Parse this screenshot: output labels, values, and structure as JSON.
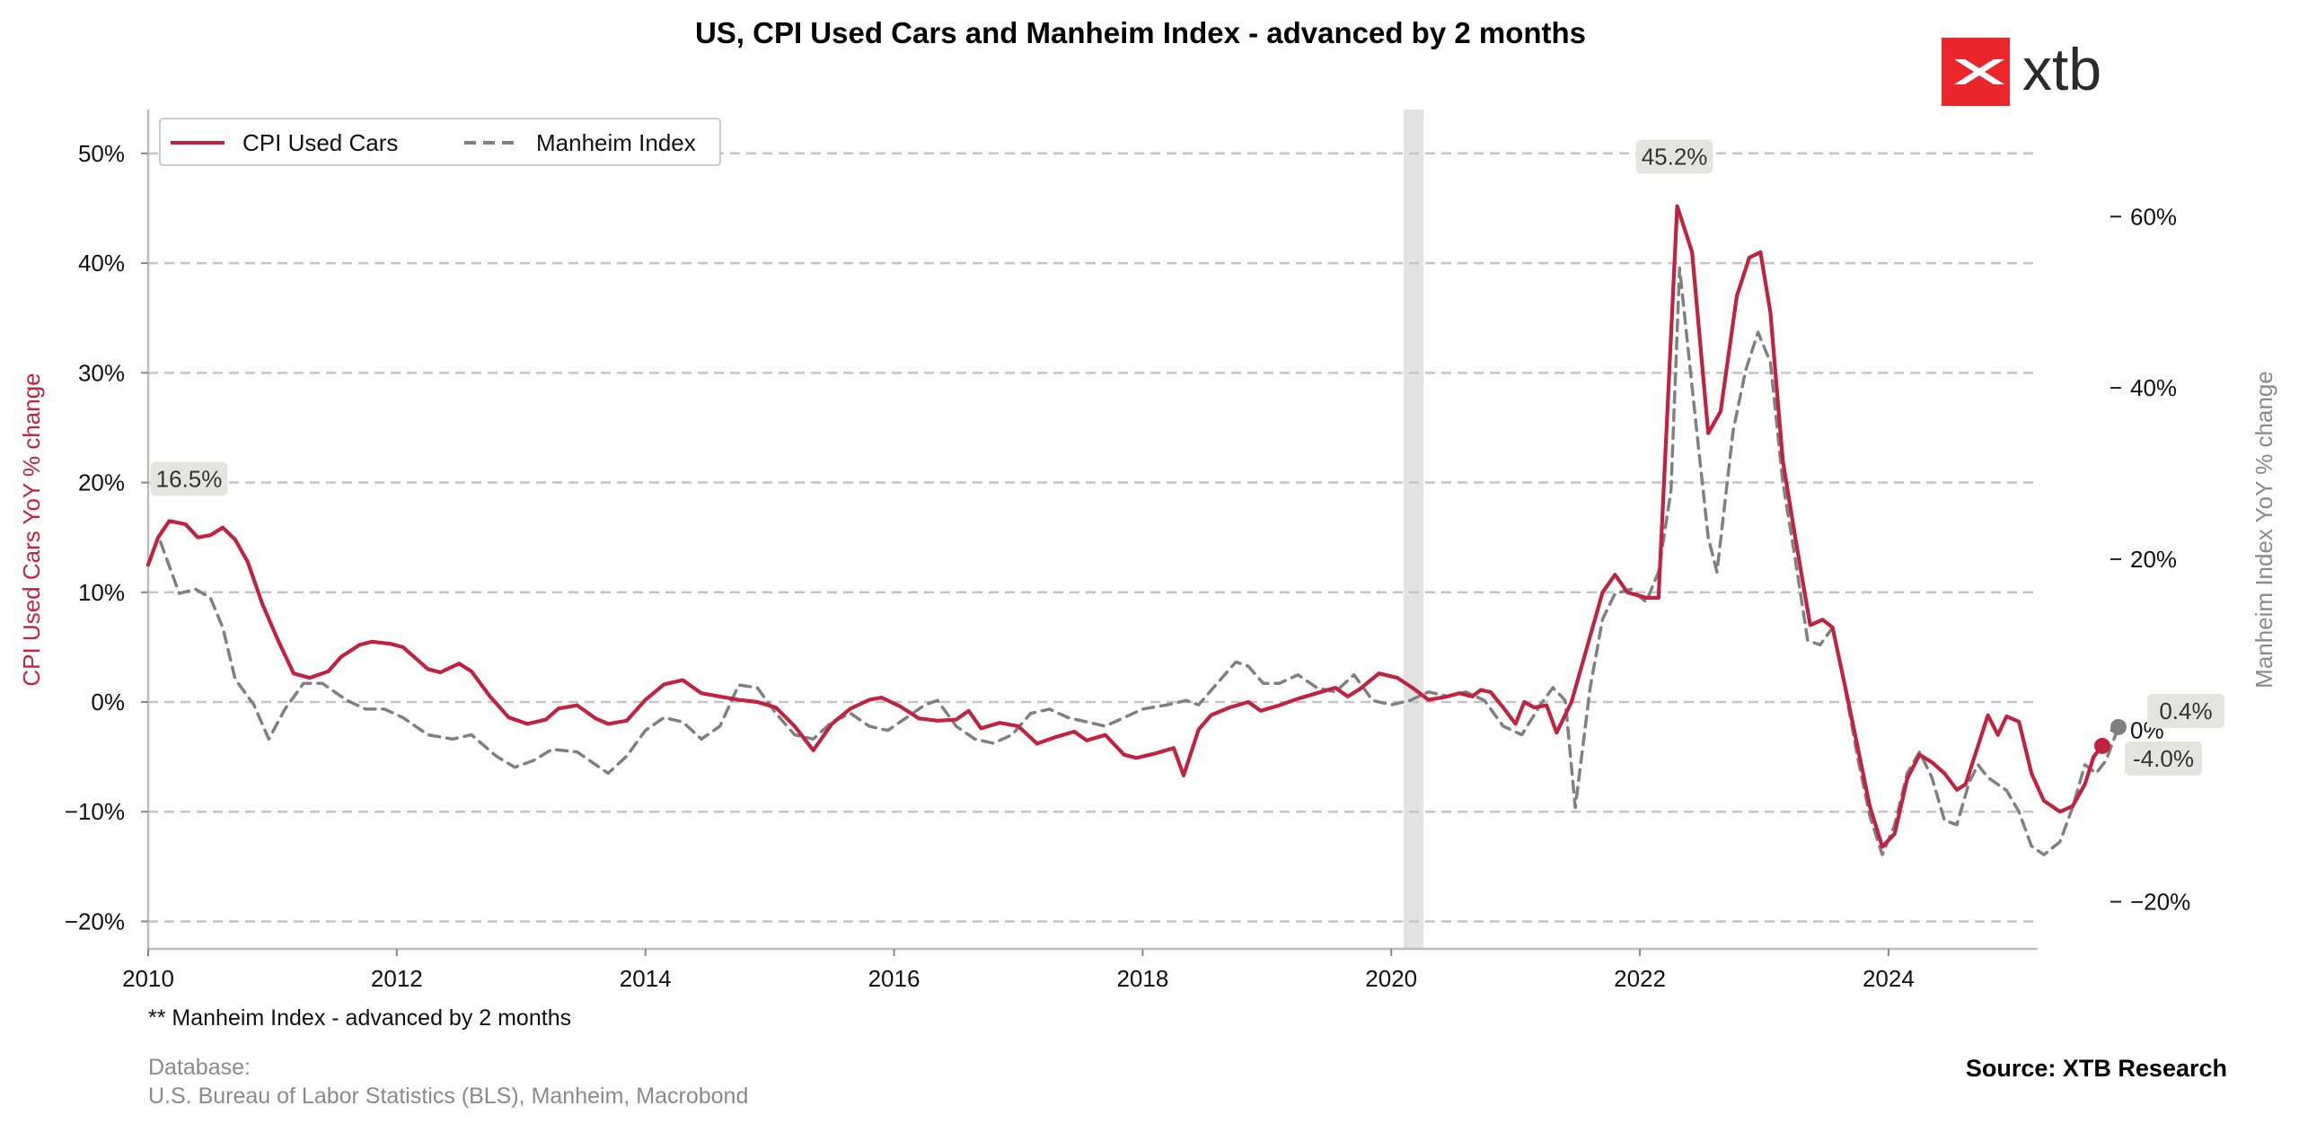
{
  "chart_data": {
    "type": "line",
    "title": "US, CPI Used Cars and Manheim Index - advanced by 2 months",
    "ylabel_left": "CPI Used Cars YoY % change",
    "ylabel_right": "Manheim Index YoY % change",
    "xlim": [
      2010,
      2025.2
    ],
    "ylim_left": [
      -22.5,
      54
    ],
    "ylim_right": [
      -25.5,
      72.5
    ],
    "grid": "horizontal-dashed",
    "legend_position": "top-left",
    "x_ticks": [
      2010,
      2012,
      2014,
      2016,
      2018,
      2020,
      2022,
      2024
    ],
    "x_tick_labels": [
      "2010",
      "2012",
      "2014",
      "2016",
      "2018",
      "2020",
      "2022",
      "2024"
    ],
    "y_left_ticks": [
      -20,
      -10,
      0,
      10,
      20,
      30,
      40,
      50
    ],
    "y_left_tick_labels": [
      "−20%",
      "−10%",
      "0%",
      "10%",
      "20%",
      "30%",
      "40%",
      "50%"
    ],
    "y_right_ticks": [
      -20,
      0,
      20,
      40,
      60
    ],
    "y_right_tick_labels": [
      "−20%",
      "0%",
      "20%",
      "40%",
      "60%"
    ],
    "shaded_band": [
      2020.1,
      2020.26
    ],
    "series": [
      {
        "name": "CPI Used Cars",
        "axis": "left",
        "color": "#c0223f",
        "style": "solid",
        "points": [
          [
            2010.0,
            12.5
          ],
          [
            2010.08,
            15.0
          ],
          [
            2010.17,
            16.5
          ],
          [
            2010.3,
            16.2
          ],
          [
            2010.4,
            15.0
          ],
          [
            2010.5,
            15.2
          ],
          [
            2010.6,
            15.9
          ],
          [
            2010.7,
            14.8
          ],
          [
            2010.8,
            12.8
          ],
          [
            2010.92,
            8.9
          ],
          [
            2011.05,
            5.5
          ],
          [
            2011.17,
            2.6
          ],
          [
            2011.3,
            2.2
          ],
          [
            2011.45,
            2.8
          ],
          [
            2011.55,
            4.1
          ],
          [
            2011.7,
            5.2
          ],
          [
            2011.8,
            5.5
          ],
          [
            2011.95,
            5.3
          ],
          [
            2012.05,
            5.0
          ],
          [
            2012.15,
            4.0
          ],
          [
            2012.25,
            3.0
          ],
          [
            2012.35,
            2.7
          ],
          [
            2012.5,
            3.5
          ],
          [
            2012.6,
            2.8
          ],
          [
            2012.75,
            0.5
          ],
          [
            2012.9,
            -1.4
          ],
          [
            2013.05,
            -2.0
          ],
          [
            2013.2,
            -1.6
          ],
          [
            2013.3,
            -0.6
          ],
          [
            2013.45,
            -0.3
          ],
          [
            2013.6,
            -1.5
          ],
          [
            2013.7,
            -2.0
          ],
          [
            2013.85,
            -1.7
          ],
          [
            2014.0,
            0.2
          ],
          [
            2014.15,
            1.6
          ],
          [
            2014.3,
            2.0
          ],
          [
            2014.45,
            0.8
          ],
          [
            2014.6,
            0.5
          ],
          [
            2014.75,
            0.2
          ],
          [
            2014.9,
            0.0
          ],
          [
            2015.05,
            -0.5
          ],
          [
            2015.2,
            -2.2
          ],
          [
            2015.35,
            -4.4
          ],
          [
            2015.5,
            -2.0
          ],
          [
            2015.65,
            -0.6
          ],
          [
            2015.8,
            0.2
          ],
          [
            2015.9,
            0.4
          ],
          [
            2016.05,
            -0.4
          ],
          [
            2016.2,
            -1.5
          ],
          [
            2016.35,
            -1.7
          ],
          [
            2016.5,
            -1.6
          ],
          [
            2016.6,
            -0.8
          ],
          [
            2016.7,
            -2.4
          ],
          [
            2016.85,
            -1.9
          ],
          [
            2017.0,
            -2.2
          ],
          [
            2017.15,
            -3.8
          ],
          [
            2017.3,
            -3.2
          ],
          [
            2017.45,
            -2.7
          ],
          [
            2017.55,
            -3.5
          ],
          [
            2017.7,
            -3.0
          ],
          [
            2017.85,
            -4.8
          ],
          [
            2017.95,
            -5.1
          ],
          [
            2018.1,
            -4.7
          ],
          [
            2018.25,
            -4.2
          ],
          [
            2018.33,
            -6.7
          ],
          [
            2018.45,
            -2.5
          ],
          [
            2018.55,
            -1.2
          ],
          [
            2018.7,
            -0.5
          ],
          [
            2018.85,
            0.0
          ],
          [
            2018.95,
            -0.8
          ],
          [
            2019.1,
            -0.3
          ],
          [
            2019.25,
            0.3
          ],
          [
            2019.4,
            0.8
          ],
          [
            2019.55,
            1.3
          ],
          [
            2019.65,
            0.5
          ],
          [
            2019.75,
            1.2
          ],
          [
            2019.9,
            2.6
          ],
          [
            2020.05,
            2.2
          ],
          [
            2020.17,
            1.3
          ],
          [
            2020.3,
            0.2
          ],
          [
            2020.45,
            0.5
          ],
          [
            2020.55,
            0.8
          ],
          [
            2020.65,
            0.5
          ],
          [
            2020.72,
            1.1
          ],
          [
            2020.8,
            0.9
          ],
          [
            2020.9,
            -0.5
          ],
          [
            2021.0,
            -2.0
          ],
          [
            2021.07,
            0.0
          ],
          [
            2021.15,
            -0.5
          ],
          [
            2021.25,
            -0.3
          ],
          [
            2021.33,
            -2.8
          ],
          [
            2021.45,
            0.0
          ],
          [
            2021.55,
            4.0
          ],
          [
            2021.7,
            10.0
          ],
          [
            2021.8,
            11.6
          ],
          [
            2021.9,
            10.0
          ],
          [
            2022.05,
            9.5
          ],
          [
            2022.15,
            9.5
          ],
          [
            2022.3,
            45.2
          ],
          [
            2022.42,
            41.0
          ],
          [
            2022.55,
            24.5
          ],
          [
            2022.65,
            26.5
          ],
          [
            2022.78,
            37.0
          ],
          [
            2022.88,
            40.5
          ],
          [
            2022.97,
            41.0
          ],
          [
            2023.05,
            35.5
          ],
          [
            2023.15,
            22.0
          ],
          [
            2023.25,
            15.0
          ],
          [
            2023.37,
            7.0
          ],
          [
            2023.47,
            7.5
          ],
          [
            2023.55,
            6.8
          ],
          [
            2023.65,
            1.5
          ],
          [
            2023.75,
            -4.0
          ],
          [
            2023.85,
            -9.5
          ],
          [
            2023.95,
            -13.2
          ],
          [
            2024.05,
            -12.0
          ],
          [
            2024.15,
            -7.0
          ],
          [
            2024.25,
            -4.8
          ],
          [
            2024.35,
            -5.5
          ],
          [
            2024.45,
            -6.5
          ],
          [
            2024.55,
            -8.0
          ],
          [
            2024.62,
            -7.5
          ],
          [
            2024.72,
            -4.0
          ],
          [
            2024.8,
            -1.2
          ],
          [
            2024.88,
            -3.0
          ],
          [
            2024.95,
            -1.3
          ],
          [
            2025.05,
            -1.8
          ],
          [
            2025.15,
            -6.5
          ],
          [
            2025.25,
            -9.0
          ],
          [
            2025.38,
            -10.0
          ],
          [
            2025.48,
            -9.5
          ],
          [
            2025.58,
            -7.5
          ],
          [
            2025.65,
            -5.0
          ],
          [
            2025.72,
            -4.0
          ]
        ]
      },
      {
        "name": "Manheim Index",
        "axis": "right",
        "color": "#808080",
        "style": "dashed",
        "points": [
          [
            2010.1,
            22.0
          ],
          [
            2010.25,
            16.0
          ],
          [
            2010.38,
            16.5
          ],
          [
            2010.5,
            15.5
          ],
          [
            2010.6,
            12.0
          ],
          [
            2010.7,
            6.0
          ],
          [
            2010.85,
            3.0
          ],
          [
            2010.97,
            -1.0
          ],
          [
            2011.1,
            2.5
          ],
          [
            2011.25,
            5.5
          ],
          [
            2011.4,
            5.5
          ],
          [
            2011.6,
            3.5
          ],
          [
            2011.75,
            2.5
          ],
          [
            2011.9,
            2.5
          ],
          [
            2012.05,
            1.5
          ],
          [
            2012.25,
            -0.5
          ],
          [
            2012.45,
            -1.0
          ],
          [
            2012.6,
            -0.5
          ],
          [
            2012.8,
            -3.0
          ],
          [
            2012.95,
            -4.3
          ],
          [
            2013.1,
            -3.5
          ],
          [
            2013.25,
            -2.2
          ],
          [
            2013.45,
            -2.5
          ],
          [
            2013.55,
            -3.5
          ],
          [
            2013.7,
            -5.0
          ],
          [
            2013.85,
            -3.0
          ],
          [
            2014.0,
            0.0
          ],
          [
            2014.15,
            1.5
          ],
          [
            2014.3,
            1.0
          ],
          [
            2014.45,
            -1.0
          ],
          [
            2014.6,
            0.5
          ],
          [
            2014.75,
            5.3
          ],
          [
            2014.9,
            5.0
          ],
          [
            2015.05,
            2.0
          ],
          [
            2015.2,
            -0.5
          ],
          [
            2015.35,
            -1.0
          ],
          [
            2015.5,
            1.0
          ],
          [
            2015.65,
            2.0
          ],
          [
            2015.8,
            0.5
          ],
          [
            2015.95,
            0.0
          ],
          [
            2016.1,
            1.5
          ],
          [
            2016.25,
            3.0
          ],
          [
            2016.35,
            3.5
          ],
          [
            2016.5,
            0.5
          ],
          [
            2016.65,
            -1.0
          ],
          [
            2016.8,
            -1.5
          ],
          [
            2016.95,
            -0.5
          ],
          [
            2017.1,
            2.0
          ],
          [
            2017.25,
            2.5
          ],
          [
            2017.4,
            1.5
          ],
          [
            2017.55,
            1.0
          ],
          [
            2017.7,
            0.5
          ],
          [
            2017.85,
            1.5
          ],
          [
            2018.0,
            2.5
          ],
          [
            2018.2,
            3.0
          ],
          [
            2018.35,
            3.5
          ],
          [
            2018.45,
            3.0
          ],
          [
            2018.6,
            5.5
          ],
          [
            2018.75,
            8.0
          ],
          [
            2018.85,
            7.5
          ],
          [
            2018.97,
            5.5
          ],
          [
            2019.1,
            5.5
          ],
          [
            2019.25,
            6.5
          ],
          [
            2019.4,
            5.0
          ],
          [
            2019.55,
            4.5
          ],
          [
            2019.7,
            6.5
          ],
          [
            2019.85,
            3.5
          ],
          [
            2020.0,
            3.0
          ],
          [
            2020.15,
            3.5
          ],
          [
            2020.3,
            4.5
          ],
          [
            2020.45,
            4.0
          ],
          [
            2020.6,
            4.5
          ],
          [
            2020.75,
            3.5
          ],
          [
            2020.9,
            0.5
          ],
          [
            2021.05,
            -0.5
          ],
          [
            2021.2,
            3.0
          ],
          [
            2021.3,
            5.0
          ],
          [
            2021.4,
            3.5
          ],
          [
            2021.48,
            -9.0
          ],
          [
            2021.6,
            5.0
          ],
          [
            2021.7,
            13.0
          ],
          [
            2021.8,
            16.0
          ],
          [
            2021.93,
            16.5
          ],
          [
            2022.05,
            15.0
          ],
          [
            2022.15,
            18.5
          ],
          [
            2022.25,
            28.0
          ],
          [
            2022.32,
            54.0
          ],
          [
            2022.45,
            36.0
          ],
          [
            2022.55,
            22.5
          ],
          [
            2022.62,
            18.5
          ],
          [
            2022.75,
            35.0
          ],
          [
            2022.85,
            42.0
          ],
          [
            2022.95,
            46.5
          ],
          [
            2023.05,
            43.0
          ],
          [
            2023.15,
            29.0
          ],
          [
            2023.25,
            20.0
          ],
          [
            2023.35,
            10.5
          ],
          [
            2023.45,
            10.0
          ],
          [
            2023.55,
            12.0
          ],
          [
            2023.65,
            5.0
          ],
          [
            2023.75,
            -3.0
          ],
          [
            2023.85,
            -10.0
          ],
          [
            2023.95,
            -14.5
          ],
          [
            2024.05,
            -11.0
          ],
          [
            2024.15,
            -5.0
          ],
          [
            2024.25,
            -2.5
          ],
          [
            2024.35,
            -5.5
          ],
          [
            2024.45,
            -10.5
          ],
          [
            2024.55,
            -11.0
          ],
          [
            2024.65,
            -6.0
          ],
          [
            2024.72,
            -4.0
          ],
          [
            2024.8,
            -5.5
          ],
          [
            2024.95,
            -7.0
          ],
          [
            2025.05,
            -9.5
          ],
          [
            2025.15,
            -13.5
          ],
          [
            2025.25,
            -14.5
          ],
          [
            2025.38,
            -13.0
          ],
          [
            2025.48,
            -9.0
          ],
          [
            2025.58,
            -4.0
          ],
          [
            2025.67,
            -5.0
          ],
          [
            2025.75,
            -3.5
          ],
          [
            2025.85,
            0.4
          ]
        ]
      }
    ],
    "annotations": [
      {
        "text": "16.5%",
        "x": 2010.17,
        "y": 16.5,
        "axis": "left"
      },
      {
        "text": "45.2%",
        "x": 2022.3,
        "y": 45.2,
        "axis": "left"
      },
      {
        "text": "0.4%",
        "x": 2025.85,
        "y": 0.4,
        "axis": "right"
      },
      {
        "text": "-4.0%",
        "x": 2025.72,
        "y": -4.0,
        "axis": "left"
      }
    ]
  },
  "legend": {
    "cpi_label": "CPI Used Cars",
    "manheim_label": "Manheim Index"
  },
  "footer": {
    "note": "** Manheim Index - advanced by 2 months",
    "database_label": "Database:",
    "database_sources": "U.S. Bureau of Labor Statistics (BLS), Manheim, Macrobond",
    "source": "Source: XTB Research"
  },
  "logo": {
    "text": "xtb",
    "color": "#e8262b"
  }
}
